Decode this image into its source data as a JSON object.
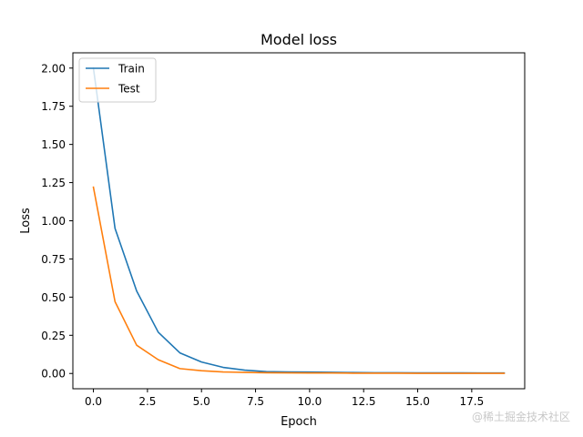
{
  "chart_data": {
    "type": "line",
    "title": "Model loss",
    "xlabel": "Epoch",
    "ylabel": "Loss",
    "xlim": [
      -0.95,
      19.95
    ],
    "ylim": [
      -0.1,
      2.1
    ],
    "xticks": [
      0.0,
      2.5,
      5.0,
      7.5,
      10.0,
      12.5,
      15.0,
      17.5
    ],
    "xtick_labels": [
      "0.0",
      "2.5",
      "5.0",
      "7.5",
      "10.0",
      "12.5",
      "15.0",
      "17.5"
    ],
    "yticks": [
      0.0,
      0.25,
      0.5,
      0.75,
      1.0,
      1.25,
      1.5,
      1.75,
      2.0
    ],
    "ytick_labels": [
      "0.00",
      "0.25",
      "0.50",
      "0.75",
      "1.00",
      "1.25",
      "1.50",
      "1.75",
      "2.00"
    ],
    "grid": false,
    "legend_position": "top-left",
    "x": [
      0,
      1,
      2,
      3,
      4,
      5,
      6,
      7,
      8,
      9,
      10,
      11,
      12,
      13,
      14,
      15,
      16,
      17,
      18,
      19
    ],
    "series": [
      {
        "name": "Train",
        "color": "#1f77b4",
        "values": [
          2.0,
          0.95,
          0.54,
          0.27,
          0.135,
          0.075,
          0.04,
          0.022,
          0.012,
          0.01,
          0.009,
          0.008,
          0.006,
          0.005,
          0.005,
          0.004,
          0.004,
          0.004,
          0.003,
          0.003
        ]
      },
      {
        "name": "Test",
        "color": "#ff7f0e",
        "values": [
          1.22,
          0.47,
          0.185,
          0.09,
          0.032,
          0.018,
          0.01,
          0.007,
          0.005,
          0.004,
          0.003,
          0.003,
          0.002,
          0.002,
          0.002,
          0.001,
          0.001,
          0.001,
          0.001,
          0.001
        ]
      }
    ]
  },
  "watermark": "@稀土掘金技术社区"
}
